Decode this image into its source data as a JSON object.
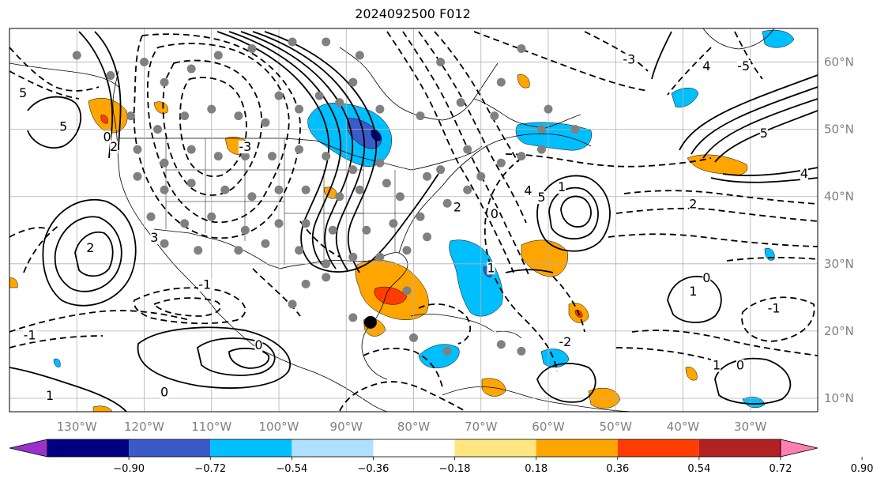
{
  "title": "2024092500 F012",
  "map": {
    "lon_range": [
      -140,
      -20
    ],
    "lat_range": [
      8,
      65
    ],
    "lon_ticks": [
      {
        "lon": -130,
        "label": "130°W"
      },
      {
        "lon": -120,
        "label": "120°W"
      },
      {
        "lon": -110,
        "label": "110°W"
      },
      {
        "lon": -100,
        "label": "100°W"
      },
      {
        "lon": -90,
        "label": "90°W"
      },
      {
        "lon": -80,
        "label": "80°W"
      },
      {
        "lon": -70,
        "label": "70°W"
      },
      {
        "lon": -60,
        "label": "60°W"
      },
      {
        "lon": -50,
        "label": "50°W"
      },
      {
        "lon": -40,
        "label": "40°W"
      },
      {
        "lon": -30,
        "label": "30°W"
      }
    ],
    "lat_ticks": [
      {
        "lat": 60,
        "label": "60°N"
      },
      {
        "lat": 50,
        "label": "50°N"
      },
      {
        "lat": 40,
        "label": "40°N"
      },
      {
        "lat": 30,
        "label": "30°N"
      },
      {
        "lat": 20,
        "label": "20°N"
      },
      {
        "lat": 10,
        "label": "10°N"
      }
    ],
    "grid": true,
    "storm_marker": {
      "lon": -86.4,
      "lat": 21.3
    }
  },
  "colorbar": {
    "ticks": [
      "−0.90",
      "−0.72",
      "−0.54",
      "−0.36",
      "−0.18",
      "0.18",
      "0.36",
      "0.54",
      "0.72",
      "0.90"
    ],
    "colors": [
      "#9932cc",
      "#000080",
      "#3a5bc7",
      "#00bfff",
      "#b0e0ff",
      "#ffffff",
      "#ffe680",
      "#ffa500",
      "#ff3d00",
      "#b22222",
      "#ff80b0"
    ],
    "extend": "both"
  },
  "contour_labels": [
    {
      "text": "3",
      "lon": -118.5,
      "lat": 33.5
    },
    {
      "text": "2",
      "lon": -128,
      "lat": 32
    },
    {
      "text": "2",
      "lon": -124.5,
      "lat": 47
    },
    {
      "text": "5",
      "lon": -132,
      "lat": 50
    },
    {
      "text": "5",
      "lon": -138,
      "lat": 55
    },
    {
      "text": "4",
      "lon": -63,
      "lat": 40.5
    },
    {
      "text": "5",
      "lon": -61,
      "lat": 39.5
    },
    {
      "text": "1",
      "lon": -58,
      "lat": 41
    },
    {
      "text": "0",
      "lon": -68,
      "lat": 37
    },
    {
      "text": "2",
      "lon": -38.5,
      "lat": 38.5
    },
    {
      "text": "-1",
      "lon": -111,
      "lat": 26.5
    },
    {
      "text": "1",
      "lon": -38.5,
      "lat": 25.5
    },
    {
      "text": "0",
      "lon": -36.5,
      "lat": 27.5
    },
    {
      "text": "-1",
      "lon": -26.5,
      "lat": 23
    },
    {
      "text": "1",
      "lon": -35,
      "lat": 14.5
    },
    {
      "text": "0",
      "lon": -31.5,
      "lat": 14.5
    },
    {
      "text": "0",
      "lon": -117,
      "lat": 10.5
    },
    {
      "text": "1",
      "lon": -134,
      "lat": 10
    },
    {
      "text": "-1",
      "lon": -137,
      "lat": 19
    },
    {
      "text": "0",
      "lon": -103,
      "lat": 17.5
    },
    {
      "text": "0",
      "lon": -125.5,
      "lat": 48.5
    },
    {
      "text": "-3",
      "lon": -105,
      "lat": 47
    },
    {
      "text": "5",
      "lon": -28,
      "lat": 49
    },
    {
      "text": "4",
      "lon": -22,
      "lat": 43
    },
    {
      "text": "-5",
      "lon": -31,
      "lat": 59
    },
    {
      "text": "4",
      "lon": -36.5,
      "lat": 59
    },
    {
      "text": "-3",
      "lon": -48,
      "lat": 60
    },
    {
      "text": "-2",
      "lon": -57.5,
      "lat": 18
    },
    {
      "text": "1",
      "lon": -68.5,
      "lat": 29
    },
    {
      "text": "2",
      "lon": -73.5,
      "lat": 38
    }
  ]
}
